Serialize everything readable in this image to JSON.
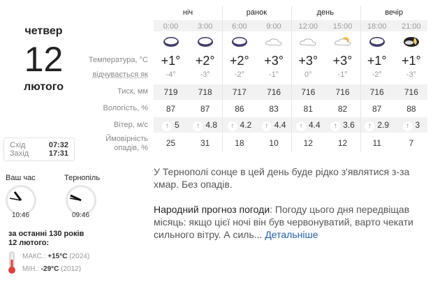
{
  "date": {
    "weekday": "четвер",
    "day": "12",
    "month": "лютого"
  },
  "sun": {
    "rise_label": "Схід",
    "rise": "07:32",
    "set_label": "Захід",
    "set": "17:31"
  },
  "clocks": [
    {
      "label": "Ваш час",
      "time": "10:46"
    },
    {
      "label": "Тернопіль",
      "time": "09:46"
    }
  ],
  "history": {
    "title1": "за останні 130 років",
    "title2": "12 лютого:",
    "max_label": "МАКС.:",
    "max": "+15°C",
    "max_year": "(2024)",
    "min_label": "МІН.:",
    "min": "-29°C",
    "min_year": "(2012)"
  },
  "periods": [
    "ніч",
    "ранок",
    "день",
    "вечір"
  ],
  "labels": {
    "temp": "Температура, °C",
    "feel": "відчувається як",
    "pressure": "Тиск, мм",
    "humidity": "Вологість, %",
    "wind": "Вітер, м/с",
    "precip1": "Ймовірність",
    "precip2": "опадів, %"
  },
  "hours": [
    {
      "time": "0:00",
      "icon": "cloudy-night-icon",
      "temp": "+1°",
      "feel": "-4°",
      "pressure": "719",
      "humidity": "87",
      "wind": "5",
      "precip": "25"
    },
    {
      "time": "3:00",
      "icon": "cloudy-night-icon",
      "temp": "+2°",
      "feel": "-3°",
      "pressure": "718",
      "humidity": "87",
      "wind": "4.8",
      "precip": "31"
    },
    {
      "time": "6:00",
      "icon": "cloudy-night-icon",
      "temp": "+2°",
      "feel": "-2°",
      "pressure": "717",
      "humidity": "86",
      "wind": "4.2",
      "precip": "18"
    },
    {
      "time": "9:00",
      "icon": "cloud-icon",
      "temp": "+3°",
      "feel": "-1°",
      "pressure": "716",
      "humidity": "83",
      "wind": "4.4",
      "precip": "10"
    },
    {
      "time": "12:00",
      "icon": "cloud-icon",
      "temp": "+3°",
      "feel": "0°",
      "pressure": "716",
      "humidity": "81",
      "wind": "4.4",
      "precip": "12"
    },
    {
      "time": "15:00",
      "icon": "partly-cloudy-icon",
      "temp": "+3°",
      "feel": "-1°",
      "pressure": "716",
      "humidity": "82",
      "wind": "3.6",
      "precip": "12"
    },
    {
      "time": "18:00",
      "icon": "cloudy-night-icon",
      "temp": "+1°",
      "feel": "-2°",
      "pressure": "716",
      "humidity": "87",
      "wind": "2.9",
      "precip": "11"
    },
    {
      "time": "21:00",
      "icon": "cloudy-moon-icon",
      "temp": "+1°",
      "feel": "-3°",
      "pressure": "716",
      "humidity": "88",
      "wind": "3",
      "precip": "7"
    }
  ],
  "description": "У Тернополі сонце в цей день буде рідко з'являтися з-за хмар. Без опадів.",
  "folk": {
    "label": "Народний прогноз погоди",
    "text": ": Погоду цього дня передвіщав місяць: якщо цієї ночі він був червонуватий, варто чекати сильного вітру. А силь...",
    "link": "Детальніше"
  }
}
